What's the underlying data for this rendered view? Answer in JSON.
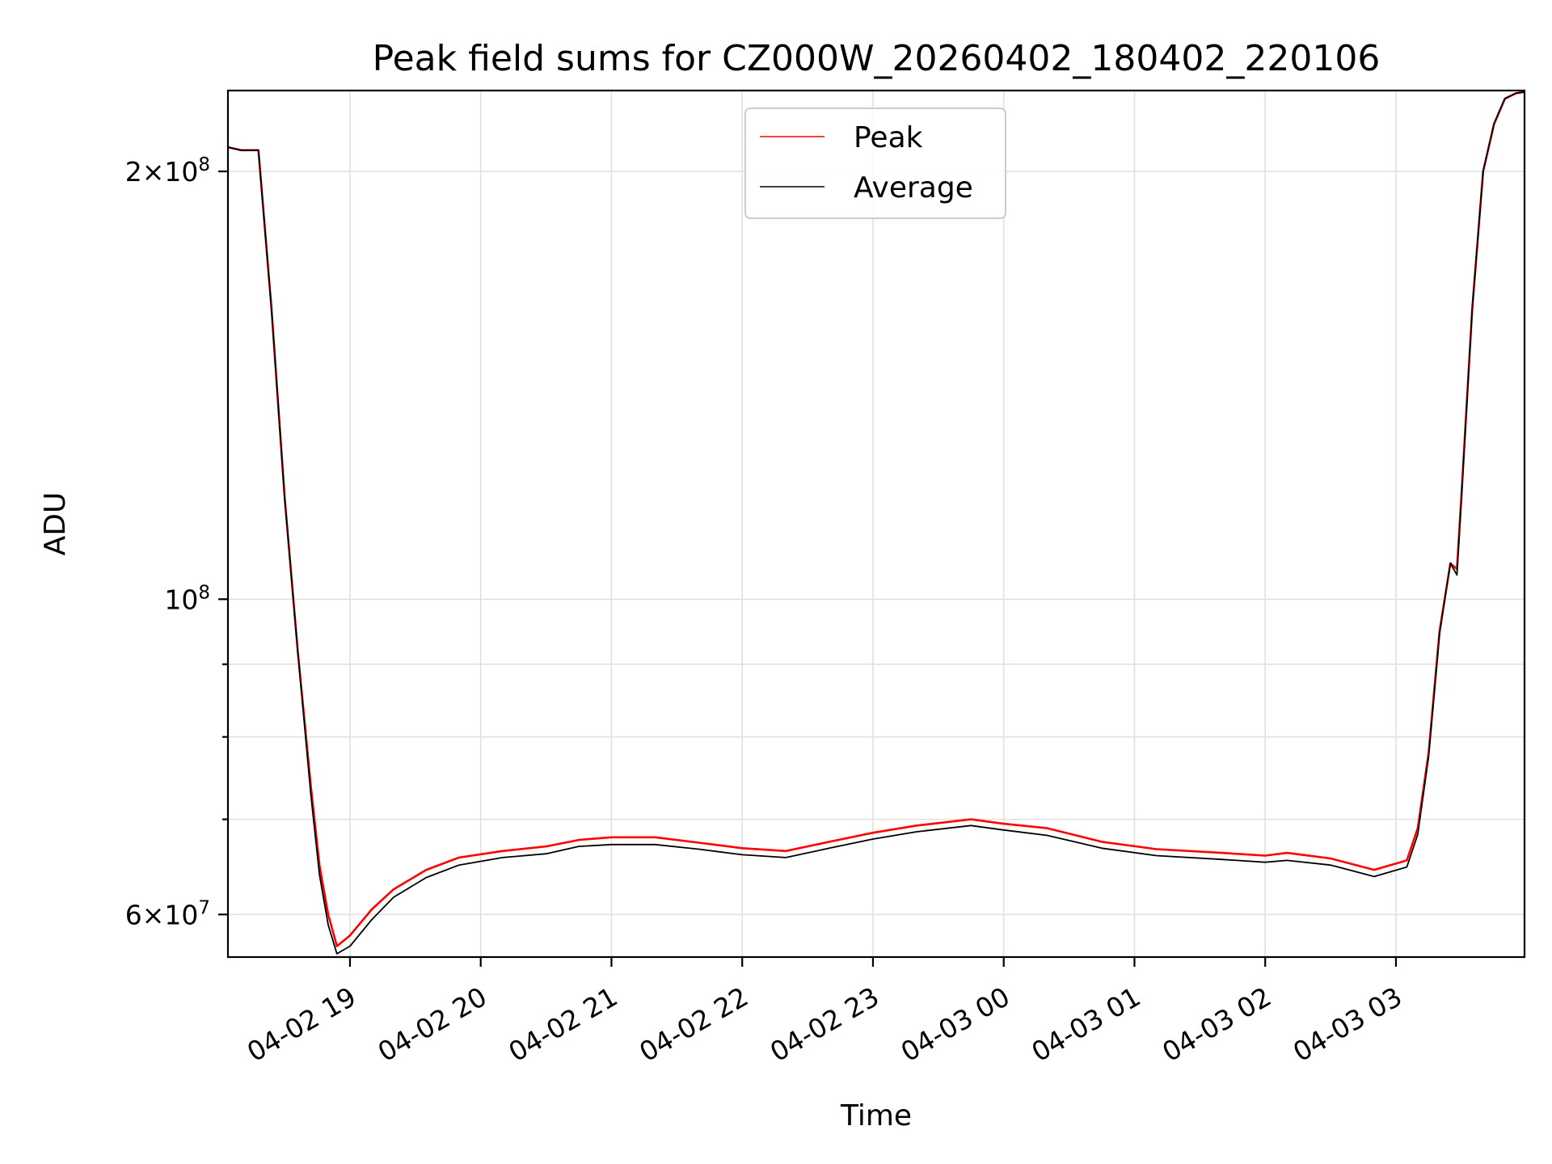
{
  "chart_data": {
    "type": "line",
    "title": "Peak field sums for CZ000W_20260402_180402_220106",
    "xlabel": "Time",
    "ylabel": "ADU",
    "yscale": "log",
    "grid": true,
    "legend_position": "top-center",
    "xlim": [
      "2026-04-02 18:04",
      "2026-04-03 03:59"
    ],
    "ylim": [
      56000000,
      228000000
    ],
    "x_ticks": [
      "04-02 19",
      "04-02 20",
      "04-02 21",
      "04-02 22",
      "04-02 23",
      "04-03 00",
      "04-03 01",
      "04-03 02",
      "04-03 03"
    ],
    "x_tick_times": [
      "2026-04-02 19:00",
      "2026-04-02 20:00",
      "2026-04-02 21:00",
      "2026-04-02 22:00",
      "2026-04-02 23:00",
      "2026-04-03 00:00",
      "2026-04-03 01:00",
      "2026-04-03 02:00",
      "2026-04-03 03:00"
    ],
    "y_ticks_major": [
      {
        "value": 60000000,
        "mantissa": "6",
        "exponent": "7"
      },
      {
        "value": 100000000,
        "mantissa": "",
        "exponent": "8"
      },
      {
        "value": 200000000,
        "mantissa": "2",
        "exponent": "8"
      }
    ],
    "y_ticks_minor": [
      70000000,
      80000000,
      90000000
    ],
    "series": [
      {
        "name": "Peak",
        "color": "#ff0000",
        "x": [
          "2026-04-02 18:04",
          "2026-04-02 18:10",
          "2026-04-02 18:14",
          "2026-04-02 18:18",
          "2026-04-02 18:24",
          "2026-04-02 18:30",
          "2026-04-02 18:36",
          "2026-04-02 18:42",
          "2026-04-02 18:46",
          "2026-04-02 18:50",
          "2026-04-02 18:54",
          "2026-04-02 19:00",
          "2026-04-02 19:10",
          "2026-04-02 19:20",
          "2026-04-02 19:35",
          "2026-04-02 19:50",
          "2026-04-02 20:10",
          "2026-04-02 20:30",
          "2026-04-02 20:45",
          "2026-04-02 21:00",
          "2026-04-02 21:20",
          "2026-04-02 21:40",
          "2026-04-02 22:00",
          "2026-04-02 22:20",
          "2026-04-02 22:40",
          "2026-04-02 23:00",
          "2026-04-02 23:20",
          "2026-04-02 23:45",
          "2026-04-03 00:00",
          "2026-04-03 00:20",
          "2026-04-03 00:45",
          "2026-04-03 01:10",
          "2026-04-03 01:40",
          "2026-04-03 02:00",
          "2026-04-03 02:10",
          "2026-04-03 02:30",
          "2026-04-03 02:50",
          "2026-04-03 03:05",
          "2026-04-03 03:10",
          "2026-04-03 03:15",
          "2026-04-03 03:20",
          "2026-04-03 03:25",
          "2026-04-03 03:28",
          "2026-04-03 03:30",
          "2026-04-03 03:35",
          "2026-04-03 03:40",
          "2026-04-03 03:45",
          "2026-04-03 03:50",
          "2026-04-03 03:55",
          "2026-04-03 03:59"
        ],
        "y": [
          208000000,
          207000000,
          207000000,
          207000000,
          160000000,
          118000000,
          92000000,
          74000000,
          65000000,
          60000000,
          57000000,
          58000000,
          60500000,
          62500000,
          64500000,
          65800000,
          66500000,
          67000000,
          67700000,
          68000000,
          68000000,
          67400000,
          66800000,
          66500000,
          67500000,
          68500000,
          69300000,
          70000000,
          69500000,
          69000000,
          67500000,
          66700000,
          66300000,
          66000000,
          66300000,
          65700000,
          64500000,
          65500000,
          69000000,
          78000000,
          95000000,
          106000000,
          105000000,
          118000000,
          160000000,
          200000000,
          216000000,
          225000000,
          227000000,
          227500000
        ]
      },
      {
        "name": "Average",
        "color": "#000000",
        "x": [
          "2026-04-02 18:04",
          "2026-04-02 18:10",
          "2026-04-02 18:14",
          "2026-04-02 18:18",
          "2026-04-02 18:24",
          "2026-04-02 18:30",
          "2026-04-02 18:36",
          "2026-04-02 18:42",
          "2026-04-02 18:46",
          "2026-04-02 18:50",
          "2026-04-02 18:54",
          "2026-04-02 19:00",
          "2026-04-02 19:10",
          "2026-04-02 19:20",
          "2026-04-02 19:35",
          "2026-04-02 19:50",
          "2026-04-02 20:10",
          "2026-04-02 20:30",
          "2026-04-02 20:45",
          "2026-04-02 21:00",
          "2026-04-02 21:20",
          "2026-04-02 21:40",
          "2026-04-02 22:00",
          "2026-04-02 22:20",
          "2026-04-02 22:40",
          "2026-04-02 23:00",
          "2026-04-02 23:20",
          "2026-04-02 23:45",
          "2026-04-03 00:00",
          "2026-04-03 00:20",
          "2026-04-03 00:45",
          "2026-04-03 01:10",
          "2026-04-03 01:40",
          "2026-04-03 02:00",
          "2026-04-03 02:10",
          "2026-04-03 02:30",
          "2026-04-03 02:50",
          "2026-04-03 03:05",
          "2026-04-03 03:10",
          "2026-04-03 03:15",
          "2026-04-03 03:20",
          "2026-04-03 03:25",
          "2026-04-03 03:28",
          "2026-04-03 03:30",
          "2026-04-03 03:35",
          "2026-04-03 03:40",
          "2026-04-03 03:45",
          "2026-04-03 03:50",
          "2026-04-03 03:55",
          "2026-04-03 03:59"
        ],
        "y": [
          208000000,
          207000000,
          207000000,
          207000000,
          160000000,
          118000000,
          92000000,
          73000000,
          64000000,
          59000000,
          56300000,
          57000000,
          59500000,
          61700000,
          63700000,
          65000000,
          65800000,
          66200000,
          67000000,
          67200000,
          67200000,
          66700000,
          66100000,
          65800000,
          66800000,
          67800000,
          68600000,
          69300000,
          68800000,
          68200000,
          66800000,
          66000000,
          65600000,
          65300000,
          65500000,
          65000000,
          63800000,
          64800000,
          68300000,
          77500000,
          94500000,
          106000000,
          104000000,
          117000000,
          160000000,
          200000000,
          216000000,
          225000000,
          227000000,
          227500000
        ]
      }
    ]
  }
}
